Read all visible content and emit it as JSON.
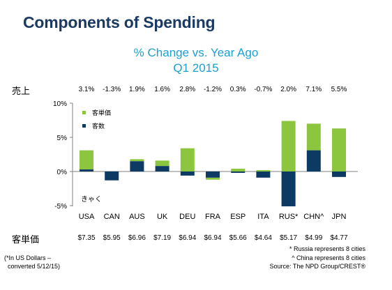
{
  "title": "Components of Spending",
  "subtitle_line1": "% Change vs. Year Ago",
  "subtitle_line2": "Q1 2015",
  "sales_label": "売上",
  "avg_check_label": "客単価",
  "stray_label": "きゃく",
  "colors": {
    "check": "#8cc63f",
    "traffic": "#0d3a63",
    "title": "#1b3a63",
    "subtitle": "#1aa0d0"
  },
  "chart_data": {
    "type": "bar",
    "stacked": true,
    "categories": [
      "USA",
      "CAN",
      "AUS",
      "UK",
      "DEU",
      "FRA",
      "ESP",
      "ITA",
      "RUS*",
      "CHN^",
      "JPN"
    ],
    "series": [
      {
        "name": "客単価",
        "values": [
          2.8,
          0.0,
          0.3,
          0.8,
          3.4,
          -0.3,
          0.4,
          0.2,
          7.4,
          3.9,
          6.3
        ]
      },
      {
        "name": "客数",
        "values": [
          0.3,
          -1.3,
          1.5,
          0.8,
          -0.6,
          -0.9,
          -0.2,
          -0.9,
          -5.1,
          3.1,
          -0.8
        ]
      }
    ],
    "totals_label": [
      "3.1%",
      "-1.3%",
      "1.9%",
      "1.6%",
      "2.8%",
      "-1.2%",
      "0.3%",
      "-0.7%",
      "2.0%",
      "7.1%",
      "5.5%"
    ],
    "avg_check": [
      "$7.35",
      "$5.95",
      "$6.96",
      "$7.19",
      "$6.94",
      "$6.94",
      "$5.66",
      "$4.64",
      "$5.17",
      "$4.99",
      "$4.77"
    ],
    "yticks": [
      "10%",
      "5%",
      "0%",
      "-5%"
    ],
    "ytick_values": [
      10,
      5,
      0,
      -5
    ],
    "ylim": [
      -5,
      10
    ],
    "grid": false,
    "legend_position": "top-left"
  },
  "footnotes": {
    "left_line1": "(*In US Dollars –",
    "left_line2": "converted 5/12/15)",
    "right_line1": "* Russia represents 8 cities",
    "right_line2": "^ China represents 8 cities",
    "right_line3": "Source: The NPD Group/CREST®"
  }
}
